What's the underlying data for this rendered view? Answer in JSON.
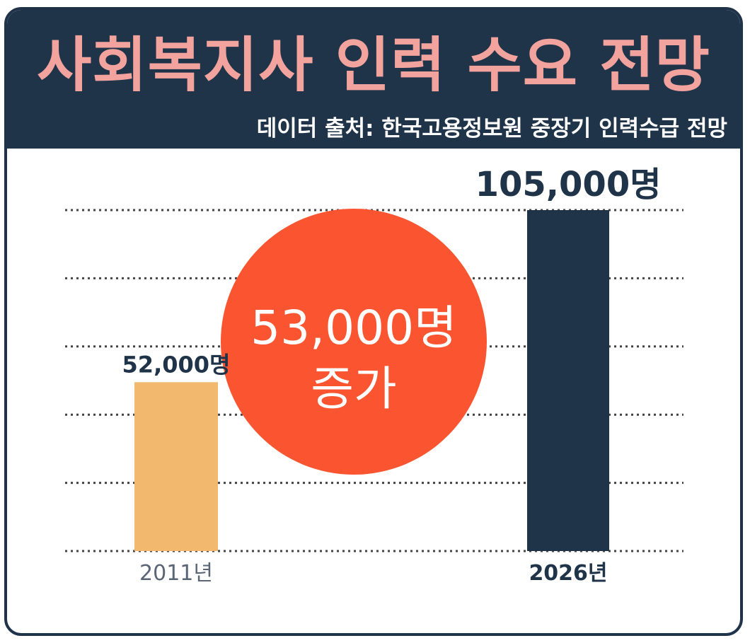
{
  "header": {
    "title": "사회복지사 인력 수요 전망",
    "source": "데이터 출처: 한국고용정보원 중장기 인력수급 전망"
  },
  "callout": {
    "line1": "53,000명",
    "line2": "증가"
  },
  "colors": {
    "header_bg": "#1f3349",
    "title": "#f2a39e",
    "bar_2011": "#f2b96e",
    "bar_2026": "#1f3349",
    "callout": "#fa5430",
    "grid": "#444444"
  },
  "chart_data": {
    "type": "bar",
    "categories": [
      "2011년",
      "2026년"
    ],
    "values": [
      52000,
      105000
    ],
    "value_labels": [
      "52,000명",
      "105,000명"
    ],
    "title": "사회복지사 인력 수요 전망",
    "xlabel": "",
    "ylabel": "",
    "ylim": [
      0,
      105000
    ],
    "grid": true,
    "grid_style": "dotted",
    "legend": "none",
    "annotation": "53,000명 증가"
  }
}
